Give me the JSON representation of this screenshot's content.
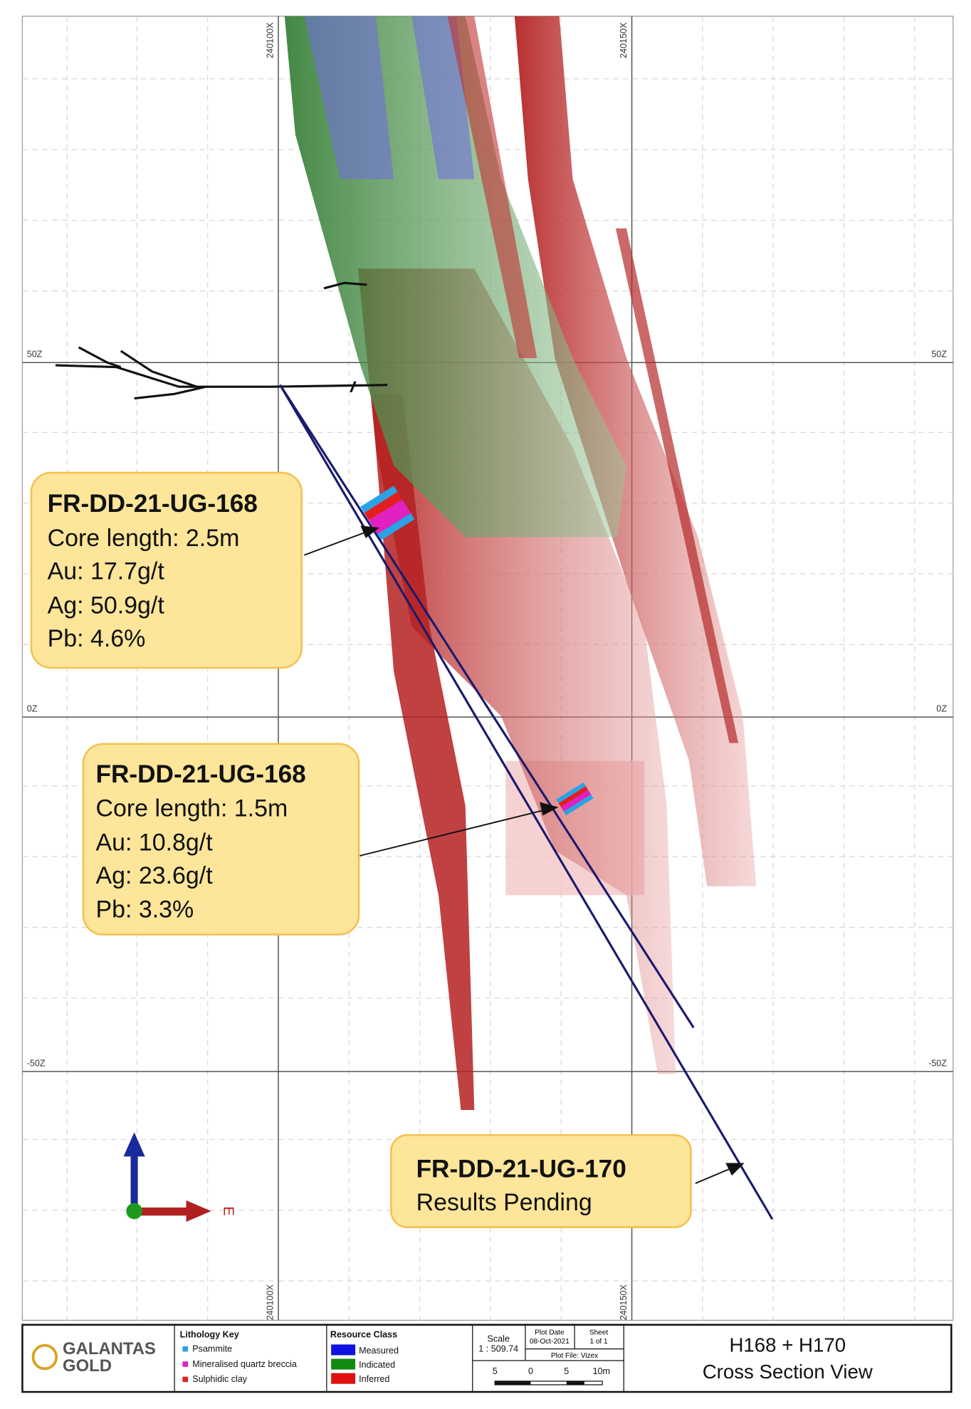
{
  "grid": {
    "x_labels": [
      "240100X",
      "240150X"
    ],
    "z_labels": [
      "50Z",
      "0Z",
      "-50Z"
    ]
  },
  "callouts": [
    {
      "title": "FR-DD-21-UG-168",
      "lines": [
        "Core length: 2.5m",
        "Au: 17.7g/t",
        "Ag: 50.9g/t",
        "Pb: 4.6%"
      ]
    },
    {
      "title": "FR-DD-21-UG-168",
      "lines": [
        "Core length: 1.5m",
        "Au: 10.8g/t",
        "Ag: 23.6g/t",
        "Pb: 3.3%"
      ]
    },
    {
      "title": "FR-DD-21-UG-170",
      "lines": [
        "Results Pending"
      ]
    }
  ],
  "orientation": {
    "label": "E"
  },
  "footer": {
    "logo": [
      "GALANTAS",
      "GOLD"
    ],
    "lithology_key": {
      "title": "Lithology Key",
      "items": [
        "Psammite",
        "Mineralised quartz breccia",
        "Sulphidic clay"
      ]
    },
    "resource_class": {
      "title": "Resource Class",
      "items": [
        "Measured",
        "Indicated",
        "Inferred"
      ]
    },
    "scale": {
      "label": "Scale",
      "value": "1 : 509.74"
    },
    "plot_date": {
      "label": "Plot Date",
      "value": "08-Oct-2021"
    },
    "sheet": {
      "label": "Sheet",
      "value": "1 of 1"
    },
    "plot_file": "Plot File: Vizex",
    "scale_bar": [
      "5",
      "0",
      "5",
      "10m"
    ],
    "title": [
      "H168 + H170",
      "Cross Section View"
    ]
  }
}
